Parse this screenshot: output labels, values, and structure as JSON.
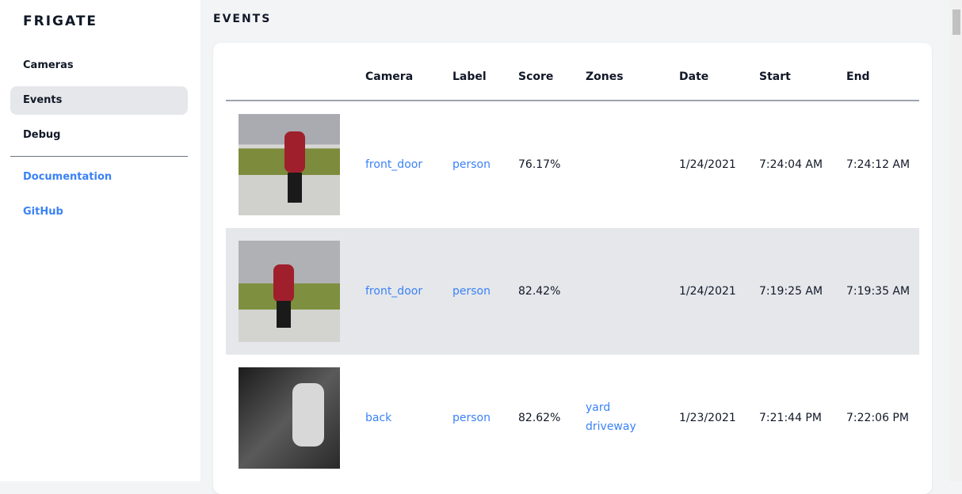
{
  "sidebar": {
    "brand": "FRIGATE",
    "items": [
      {
        "label": "Cameras"
      },
      {
        "label": "Events",
        "active": true
      },
      {
        "label": "Debug"
      }
    ],
    "links": [
      {
        "label": "Documentation"
      },
      {
        "label": "GitHub"
      }
    ]
  },
  "page": {
    "title": "EVENTS"
  },
  "table": {
    "headers": [
      "Camera",
      "Label",
      "Score",
      "Zones",
      "Date",
      "Start",
      "End"
    ],
    "rows": [
      {
        "camera": "front_door",
        "label": "person",
        "score": "76.17%",
        "zones": [
          "",
          ""
        ],
        "date": "1/24/2021",
        "start": "7:24:04 AM",
        "end": "7:24:12 AM"
      },
      {
        "camera": "front_door",
        "label": "person",
        "score": "82.42%",
        "zones": [
          "",
          ""
        ],
        "date": "1/24/2021",
        "start": "7:19:25 AM",
        "end": "7:19:35 AM"
      },
      {
        "camera": "back",
        "label": "person",
        "score": "82.62%",
        "zones": [
          "yard",
          "driveway"
        ],
        "date": "1/23/2021",
        "start": "7:21:44 PM",
        "end": "7:22:06 PM"
      }
    ]
  },
  "colors": {
    "link": "#3b82f6",
    "active": "#e5e7eb"
  }
}
